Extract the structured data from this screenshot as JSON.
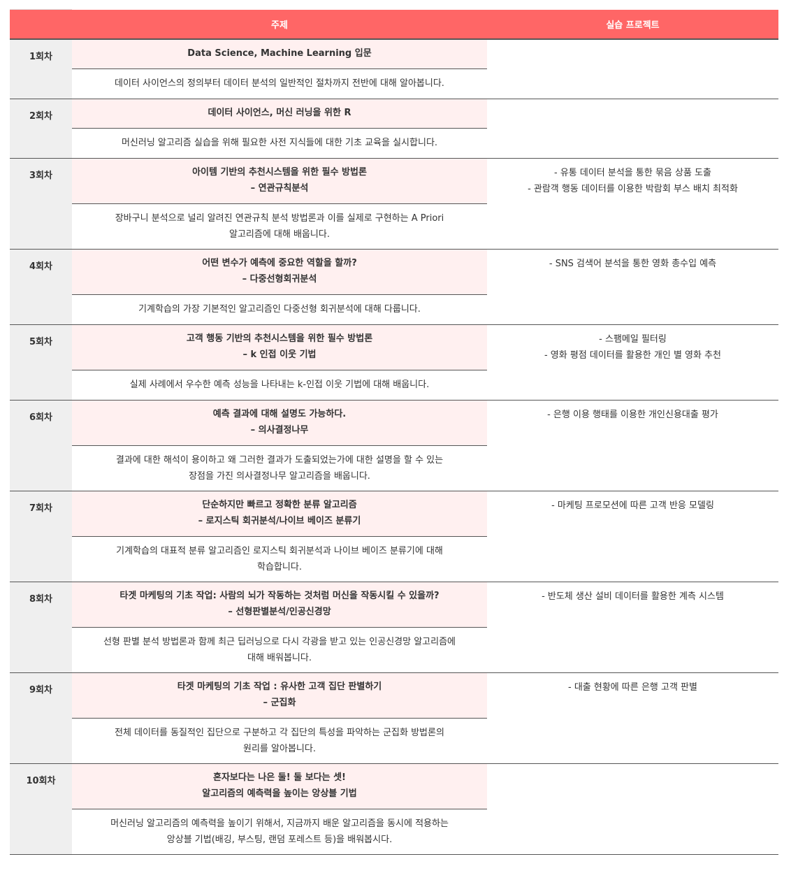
{
  "header": {
    "col_topic": "주제",
    "col_project": "실습 프로젝트"
  },
  "sessions": [
    {
      "label": "1회차",
      "topic": [
        "Data Science, Machine Learning 입문"
      ],
      "desc": [
        "데이터 사이언스의 정의부터 데이터 분석의 일반적인 절차까지 전반에 대해 알아봅니다."
      ],
      "projects": []
    },
    {
      "label": "2회차",
      "topic": [
        "데이터 사이언스, 머신 러닝을 위한 R"
      ],
      "desc": [
        "머신러닝 알고리즘 실습을 위해 필요한 사전 지식들에 대한 기초 교육을 실시합니다."
      ],
      "projects": []
    },
    {
      "label": "3회차",
      "topic": [
        "아이템 기반의 추천시스템을 위한 필수 방법론",
        "– 연관규칙분석"
      ],
      "desc": [
        "장바구니 분석으로 널리 알려진 연관규칙 분석 방법론과 이를 실제로 구현하는 A Priori",
        "알고리즘에 대해 배웁니다."
      ],
      "projects": [
        "- 유통 데이터 분석을 통한 묶음 상품 도출",
        "- 관람객 행동 데이터를 이용한 박람회 부스 배치 최적화"
      ]
    },
    {
      "label": "4회차",
      "topic": [
        "어떤 변수가 예측에 중요한 역할을 할까?",
        "– 다중선형회귀분석"
      ],
      "desc": [
        "기계학습의 가장 기본적인 알고리즘인 다중선형 회귀분석에 대해 다룹니다."
      ],
      "projects": [
        "- SNS 검색어 분석을 통한 영화 총수입 예측"
      ]
    },
    {
      "label": "5회차",
      "topic": [
        "고객 행동 기반의 추천시스템을 위한 필수 방법론",
        "– k 인접 이웃 기법"
      ],
      "desc": [
        "실제 사례에서 우수한 예측 성능을 나타내는 k-인접 이웃 기법에 대해 배웁니다."
      ],
      "projects": [
        "- 스팸메일 필터링",
        "- 영화 평점 데이터를 활용한 개인 별 영화 추천"
      ]
    },
    {
      "label": "6회차",
      "topic": [
        "예측 결과에 대해 설명도 가능하다.",
        "– 의사결정나무"
      ],
      "desc": [
        "결과에 대한 해석이 용이하고 왜 그러한 결과가 도출되었는가에 대한 설명을 할 수 있는",
        "장점을 가진 의사결정나무 알고리즘을 배웁니다."
      ],
      "projects": [
        "- 은행 이용 행태를 이용한 개인신용대출 평가"
      ]
    },
    {
      "label": "7회차",
      "topic": [
        "단순하지만 빠르고 정확한 분류 알고리즘",
        "– 로지스틱 회귀분석/나이브 베이즈 분류기"
      ],
      "desc": [
        "기계학습의 대표적 분류 알고리즘인 로지스틱 회귀분석과 나이브 베이즈 분류기에 대해",
        "학습합니다."
      ],
      "projects": [
        "- 마케팅 프로모션에 따른 고객 반응 모델링"
      ]
    },
    {
      "label": "8회차",
      "topic": [
        "타겟 마케팅의 기초 작업: 사람의 뇌가 작동하는 것처럼 머신을 작동시킬 수 있을까?",
        "– 선형판별분석/인공신경망"
      ],
      "desc": [
        "선형 판별 분석 방법론과 함께 최근 딥러닝으로 다시 각광을 받고 있는 인공신경망 알고리즘에",
        "대해 배워봅니다."
      ],
      "projects": [
        "- 반도체 생산 설비 데이터를 활용한 계측 시스템"
      ]
    },
    {
      "label": "9회차",
      "topic": [
        "타겟 마케팅의 기초 작업 : 유사한 고객 집단 판별하기",
        "– 군집화"
      ],
      "desc": [
        "전체 데이터를 동질적인 집단으로 구분하고 각 집단의 특성을 파악하는 군집화 방법론의",
        "원리를 알아봅니다."
      ],
      "projects": [
        "- 대출 현황에 따른 은행 고객 판별"
      ]
    },
    {
      "label": "10회차",
      "topic": [
        "혼자보다는 나은 둘! 둘 보다는 셋!",
        "알고리즘의 예측력을 높이는 앙상블 기법"
      ],
      "desc": [
        "머신러닝 알고리즘의 예측력을 높이기 위해서, 지금까지 배운 알고리즘을 동시에 적용하는",
        "앙상블 기법(배깅, 부스팅, 랜덤 포레스트 등)을 배워봅시다."
      ],
      "projects": []
    }
  ]
}
